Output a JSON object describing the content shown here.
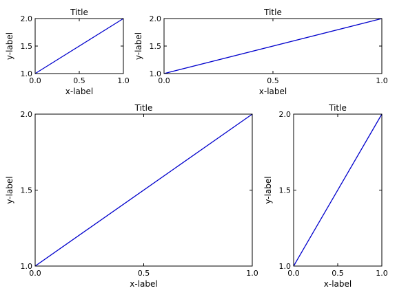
{
  "chart_data": [
    {
      "type": "line",
      "title": "Title",
      "xlabel": "x-label",
      "ylabel": "y-label",
      "xlim": [
        0.0,
        1.0
      ],
      "ylim": [
        1.0,
        2.0
      ],
      "xticks": [
        "0.0",
        "0.5",
        "1.0"
      ],
      "yticks": [
        "1.0",
        "1.5",
        "2.0"
      ],
      "grid": false,
      "series": [
        {
          "x": [
            0,
            1
          ],
          "y": [
            1,
            2
          ],
          "color": "#0000cc"
        }
      ]
    },
    {
      "type": "line",
      "title": "Title",
      "xlabel": "x-label",
      "ylabel": "y-label",
      "xlim": [
        0.0,
        1.0
      ],
      "ylim": [
        1.0,
        2.0
      ],
      "xticks": [
        "0.0",
        "0.5",
        "1.0"
      ],
      "yticks": [
        "1.0",
        "1.5",
        "2.0"
      ],
      "grid": false,
      "series": [
        {
          "x": [
            0,
            1
          ],
          "y": [
            1,
            2
          ],
          "color": "#0000cc"
        }
      ]
    },
    {
      "type": "line",
      "title": "Title",
      "xlabel": "x-label",
      "ylabel": "y-label",
      "xlim": [
        0.0,
        1.0
      ],
      "ylim": [
        1.0,
        2.0
      ],
      "xticks": [
        "0.0",
        "0.5",
        "1.0"
      ],
      "yticks": [
        "1.0",
        "1.5",
        "2.0"
      ],
      "grid": false,
      "series": [
        {
          "x": [
            0,
            1
          ],
          "y": [
            1,
            2
          ],
          "color": "#0000cc"
        }
      ]
    },
    {
      "type": "line",
      "title": "Title",
      "xlabel": "x-label",
      "ylabel": "y-label",
      "xlim": [
        0.0,
        1.0
      ],
      "ylim": [
        1.0,
        2.0
      ],
      "xticks": [
        "0.0",
        "0.5",
        "1.0"
      ],
      "yticks": [
        "1.0",
        "1.5",
        "2.0"
      ],
      "grid": false,
      "series": [
        {
          "x": [
            0,
            1
          ],
          "y": [
            1,
            2
          ],
          "color": "#0000cc"
        }
      ]
    }
  ]
}
